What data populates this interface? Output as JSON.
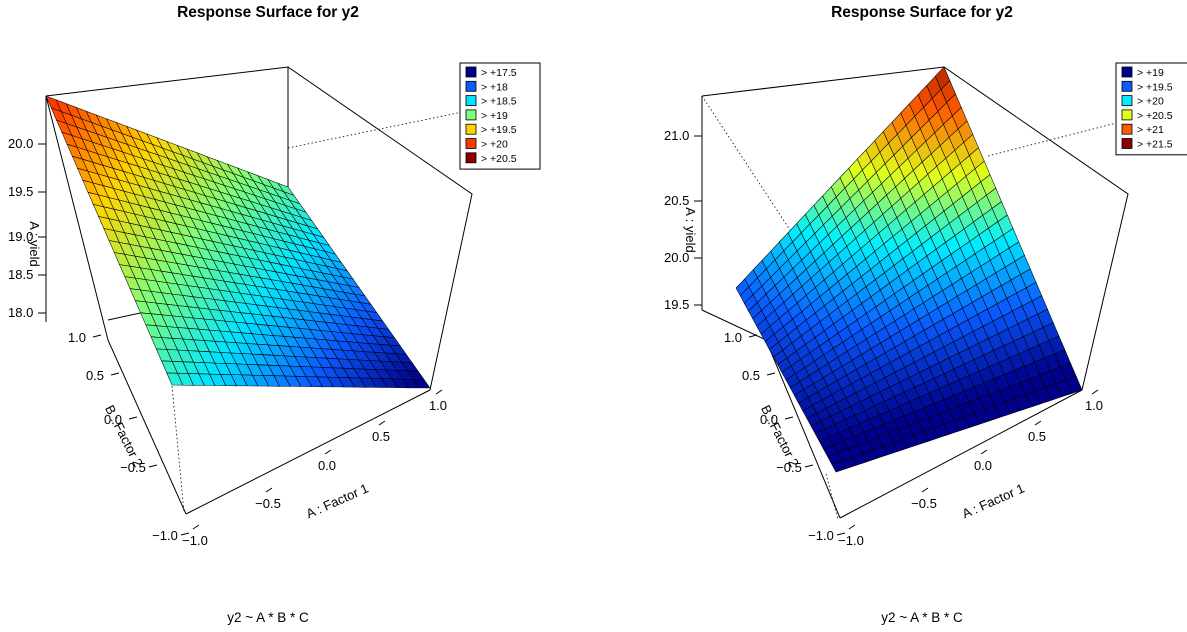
{
  "chart_data": [
    {
      "type": "surface3d",
      "title": "Response Surface for y2",
      "formula": "y2 ~ A * B * C",
      "x_label": "A : Factor 1",
      "y_label": "B : Factor 2",
      "z_label": "A : yield",
      "x_ticks": [
        "−1.0",
        "−0.5",
        "0.0",
        "0.5",
        "1.0"
      ],
      "y_ticks": [
        "−1.0",
        "−0.5",
        "0.0",
        "0.5",
        "1.0"
      ],
      "z_ticks": [
        "18.0",
        "18.5",
        "19.0",
        "19.5",
        "20.0"
      ],
      "xlim": [
        -1,
        1
      ],
      "ylim": [
        -1,
        1
      ],
      "zlim": [
        17.8,
        20.2
      ],
      "surface_corners": {
        "x_-1_y_1": 20.5,
        "x_1_y_1": 19.05,
        "x_-1_y_-1": 18.85,
        "x_1_y_-1": 17.4
      },
      "legend": [
        "> +17.5",
        "> +18",
        "> +18.5",
        "> +19",
        "> +19.5",
        "> +20",
        "> +20.5"
      ],
      "legend_colors": [
        "#00008B",
        "#0A5AFF",
        "#00E4FF",
        "#7CFF7C",
        "#FFD400",
        "#FF3A00",
        "#8B0000"
      ],
      "legend_placement": "top-right"
    },
    {
      "type": "surface3d",
      "title": "Response Surface for y2",
      "formula": "y2 ~ A * B * C",
      "x_label": "A : Factor 1",
      "y_label": "B : Factor 2",
      "z_label": "A : yield",
      "x_ticks": [
        "−1.0",
        "−0.5",
        "0.0",
        "0.5",
        "1.0"
      ],
      "y_ticks": [
        "−1.0",
        "−0.5",
        "0.0",
        "0.5",
        "1.0"
      ],
      "z_ticks": [
        "19.5",
        "20.0",
        "20.5",
        "21.0"
      ],
      "xlim": [
        -1,
        1
      ],
      "ylim": [
        -1,
        1
      ],
      "zlim": [
        19.4,
        21.2
      ],
      "surface_corners": {
        "x_-1_y_1": 19.6,
        "x_1_y_1": 21.8,
        "x_-1_y_-1": 18.9,
        "x_1_y_-1": 18.75
      },
      "legend": [
        "> +19",
        "> +19.5",
        "> +20",
        "> +20.5",
        "> +21",
        "> +21.5"
      ],
      "legend_colors": [
        "#00008B",
        "#0A5AFF",
        "#00F0FF",
        "#E0FF1A",
        "#FF5A00",
        "#8B0000"
      ],
      "legend_placement": "top-right"
    }
  ]
}
